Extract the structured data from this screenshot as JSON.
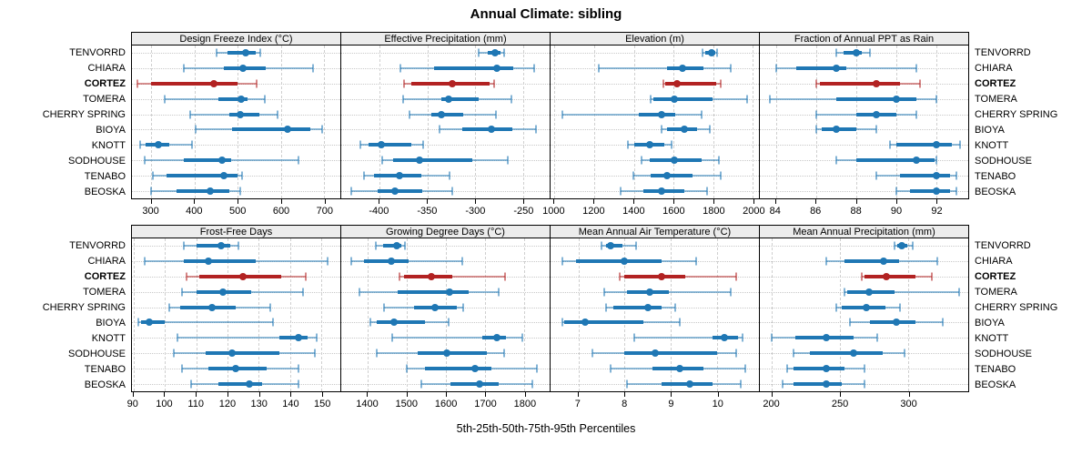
{
  "title": "Annual Climate: sibling",
  "xlabel": "5th-25th-50th-75th-95th Percentiles",
  "chart_data": {
    "type": "dotplot-percentiles",
    "percentiles": [
      5,
      25,
      50,
      75,
      95
    ],
    "stations": [
      "TENVORRD",
      "CHIARA",
      "CORTEZ",
      "TOMERA",
      "CHERRY SPRING",
      "BIOYA",
      "KNOTT",
      "SODHOUSE",
      "TENABO",
      "BEOSKA"
    ],
    "highlight_station": "CORTEZ",
    "highlight_index": 2,
    "colors": {
      "normal": "#1f77b4",
      "highlight": "#b22222",
      "grid": "#cfcfcf",
      "strip_bg": "#ececec"
    },
    "layout": {
      "rows": 2,
      "cols": 4,
      "grid": "dashed-vertical dotted-horizontal",
      "row_labels": "both-sides"
    },
    "panels": [
      {
        "title": "Design Freeze Index (°C)",
        "xlim": [
          255,
          738
        ],
        "ticks": [
          300,
          400,
          500,
          600,
          700
        ],
        "values": [
          [
            452,
            477,
            518,
            542,
            553
          ],
          [
            375,
            468,
            512,
            565,
            675
          ],
          [
            267,
            300,
            445,
            500,
            544
          ],
          [
            330,
            455,
            508,
            523,
            563
          ],
          [
            391,
            480,
            507,
            551,
            592
          ],
          [
            403,
            486,
            615,
            668,
            696
          ],
          [
            275,
            287,
            316,
            341,
            394
          ],
          [
            284,
            376,
            464,
            484,
            640
          ],
          [
            303,
            336,
            467,
            500,
            510
          ],
          [
            300,
            359,
            437,
            480,
            505
          ]
        ]
      },
      {
        "title": "Effective Precipitation (mm)",
        "xlim": [
          -440,
          -222
        ],
        "ticks": [
          -400,
          -350,
          -300,
          -250
        ],
        "values": [
          [
            -296,
            -287,
            -279,
            -273,
            -270
          ],
          [
            -378,
            -343,
            -277,
            -260,
            -238
          ],
          [
            -374,
            -367,
            -324,
            -285,
            -280
          ],
          [
            -375,
            -335,
            -328,
            -296,
            -262
          ],
          [
            -369,
            -346,
            -335,
            -312,
            -278
          ],
          [
            -337,
            -313,
            -283,
            -261,
            -236
          ],
          [
            -420,
            -411,
            -398,
            -367,
            -354
          ],
          [
            -397,
            -386,
            -358,
            -303,
            -266
          ],
          [
            -416,
            -406,
            -379,
            -356,
            -327
          ],
          [
            -430,
            -402,
            -384,
            -355,
            -324
          ]
        ]
      },
      {
        "title": "Elevation (m)",
        "xlim": [
          980,
          2030
        ],
        "ticks": [
          1000,
          1200,
          1400,
          1600,
          1800,
          2000
        ],
        "values": [
          [
            1748,
            1758,
            1790,
            1810,
            1820
          ],
          [
            1222,
            1569,
            1645,
            1750,
            1890
          ],
          [
            1550,
            1560,
            1617,
            1815,
            1837
          ],
          [
            1483,
            1500,
            1605,
            1795,
            1970
          ],
          [
            1041,
            1425,
            1538,
            1606,
            1742
          ],
          [
            1538,
            1569,
            1652,
            1719,
            1784
          ],
          [
            1368,
            1403,
            1478,
            1554,
            1588
          ],
          [
            1437,
            1478,
            1603,
            1742,
            1830
          ],
          [
            1395,
            1486,
            1568,
            1697,
            1836
          ],
          [
            1335,
            1448,
            1538,
            1652,
            1768
          ]
        ]
      },
      {
        "title": "Fraction of Annual PPT as Rain",
        "xlim": [
          83.2,
          93.6
        ],
        "ticks": [
          84,
          86,
          88,
          90,
          92
        ],
        "values": [
          [
            87.0,
            87.4,
            88.0,
            88.3,
            88.7
          ],
          [
            84.0,
            85.0,
            87.0,
            87.5,
            91.0
          ],
          [
            86.0,
            86.2,
            89.0,
            90.2,
            91.2
          ],
          [
            83.7,
            87.0,
            90.0,
            91.0,
            92.0
          ],
          [
            86.0,
            88.0,
            89.0,
            90.0,
            91.0
          ],
          [
            86.0,
            86.3,
            87.0,
            88.0,
            89.0
          ],
          [
            89.7,
            90.0,
            92.0,
            92.8,
            93.2
          ],
          [
            87.0,
            88.0,
            91.0,
            91.9,
            92.0
          ],
          [
            89.0,
            90.2,
            92.0,
            92.7,
            93.0
          ],
          [
            90.0,
            90.7,
            92.0,
            92.7,
            93.0
          ]
        ]
      },
      {
        "title": "Frost-Free Days",
        "xlim": [
          89.5,
          156
        ],
        "ticks": [
          90,
          100,
          110,
          120,
          130,
          140,
          150
        ],
        "values": [
          [
            106,
            110,
            118,
            121,
            123.5
          ],
          [
            93.5,
            106,
            114,
            129,
            152
          ],
          [
            107,
            111,
            125,
            137,
            145
          ],
          [
            105.5,
            110,
            118.5,
            127.5,
            144
          ],
          [
            101.5,
            105,
            115,
            122.5,
            133.5
          ],
          [
            91.5,
            92.5,
            95,
            100,
            134.5
          ],
          [
            104,
            136.5,
            142.5,
            145.5,
            148.5
          ],
          [
            103,
            113,
            121.5,
            136.5,
            148
          ],
          [
            105.5,
            114,
            122.5,
            132.5,
            142.5
          ],
          [
            108.5,
            117,
            127,
            131,
            142.5
          ]
        ]
      },
      {
        "title": "Growing Degree Days (°C)",
        "xlim": [
          1332,
          1865
        ],
        "ticks": [
          1400,
          1500,
          1600,
          1700,
          1800
        ],
        "values": [
          [
            1420,
            1440,
            1475,
            1485,
            1495
          ],
          [
            1358,
            1390,
            1460,
            1504,
            1642
          ],
          [
            1482,
            1492,
            1562,
            1615,
            1752
          ],
          [
            1378,
            1477,
            1608,
            1658,
            1735
          ],
          [
            1442,
            1519,
            1572,
            1627,
            1645
          ],
          [
            1406,
            1423,
            1468,
            1546,
            1606
          ],
          [
            1463,
            1692,
            1731,
            1754,
            1796
          ],
          [
            1422,
            1527,
            1602,
            1704,
            1748
          ],
          [
            1500,
            1546,
            1675,
            1715,
            1832
          ],
          [
            1537,
            1612,
            1685,
            1735,
            1820
          ]
        ]
      },
      {
        "title": "Mean Annual Air Temperature (°C)",
        "xlim": [
          6.4,
          10.9
        ],
        "ticks": [
          7,
          8,
          9,
          10
        ],
        "values": [
          [
            7.5,
            7.6,
            7.7,
            7.95,
            8.25
          ],
          [
            6.65,
            6.95,
            8.0,
            8.8,
            9.55
          ],
          [
            7.9,
            8.0,
            8.8,
            9.3,
            10.4
          ],
          [
            7.55,
            8.05,
            8.55,
            8.95,
            10.3
          ],
          [
            7.6,
            7.75,
            8.5,
            8.8,
            9.1
          ],
          [
            6.65,
            6.7,
            7.15,
            8.4,
            9.2
          ],
          [
            8.2,
            9.9,
            10.15,
            10.45,
            10.55
          ],
          [
            7.3,
            8.0,
            8.65,
            10.0,
            10.4
          ],
          [
            7.7,
            8.6,
            9.2,
            9.7,
            10.6
          ],
          [
            8.05,
            8.8,
            9.4,
            9.9,
            10.5
          ]
        ]
      },
      {
        "title": "Mean Annual Precipitation (mm)",
        "xlim": [
          191,
          344
        ],
        "ticks": [
          200,
          250,
          300
        ],
        "values": [
          [
            290,
            292,
            295,
            299,
            303
          ],
          [
            240,
            253,
            282,
            293,
            321
          ],
          [
            266,
            268,
            284,
            305,
            317
          ],
          [
            253,
            255,
            271,
            290,
            337
          ],
          [
            247,
            251,
            269,
            283,
            294
          ],
          [
            257,
            272,
            291,
            305,
            325
          ],
          [
            200,
            217,
            240,
            260,
            277
          ],
          [
            216,
            228,
            260,
            281,
            297
          ],
          [
            211,
            216,
            240,
            253,
            268
          ],
          [
            208,
            216,
            240,
            251,
            268
          ]
        ]
      }
    ]
  }
}
